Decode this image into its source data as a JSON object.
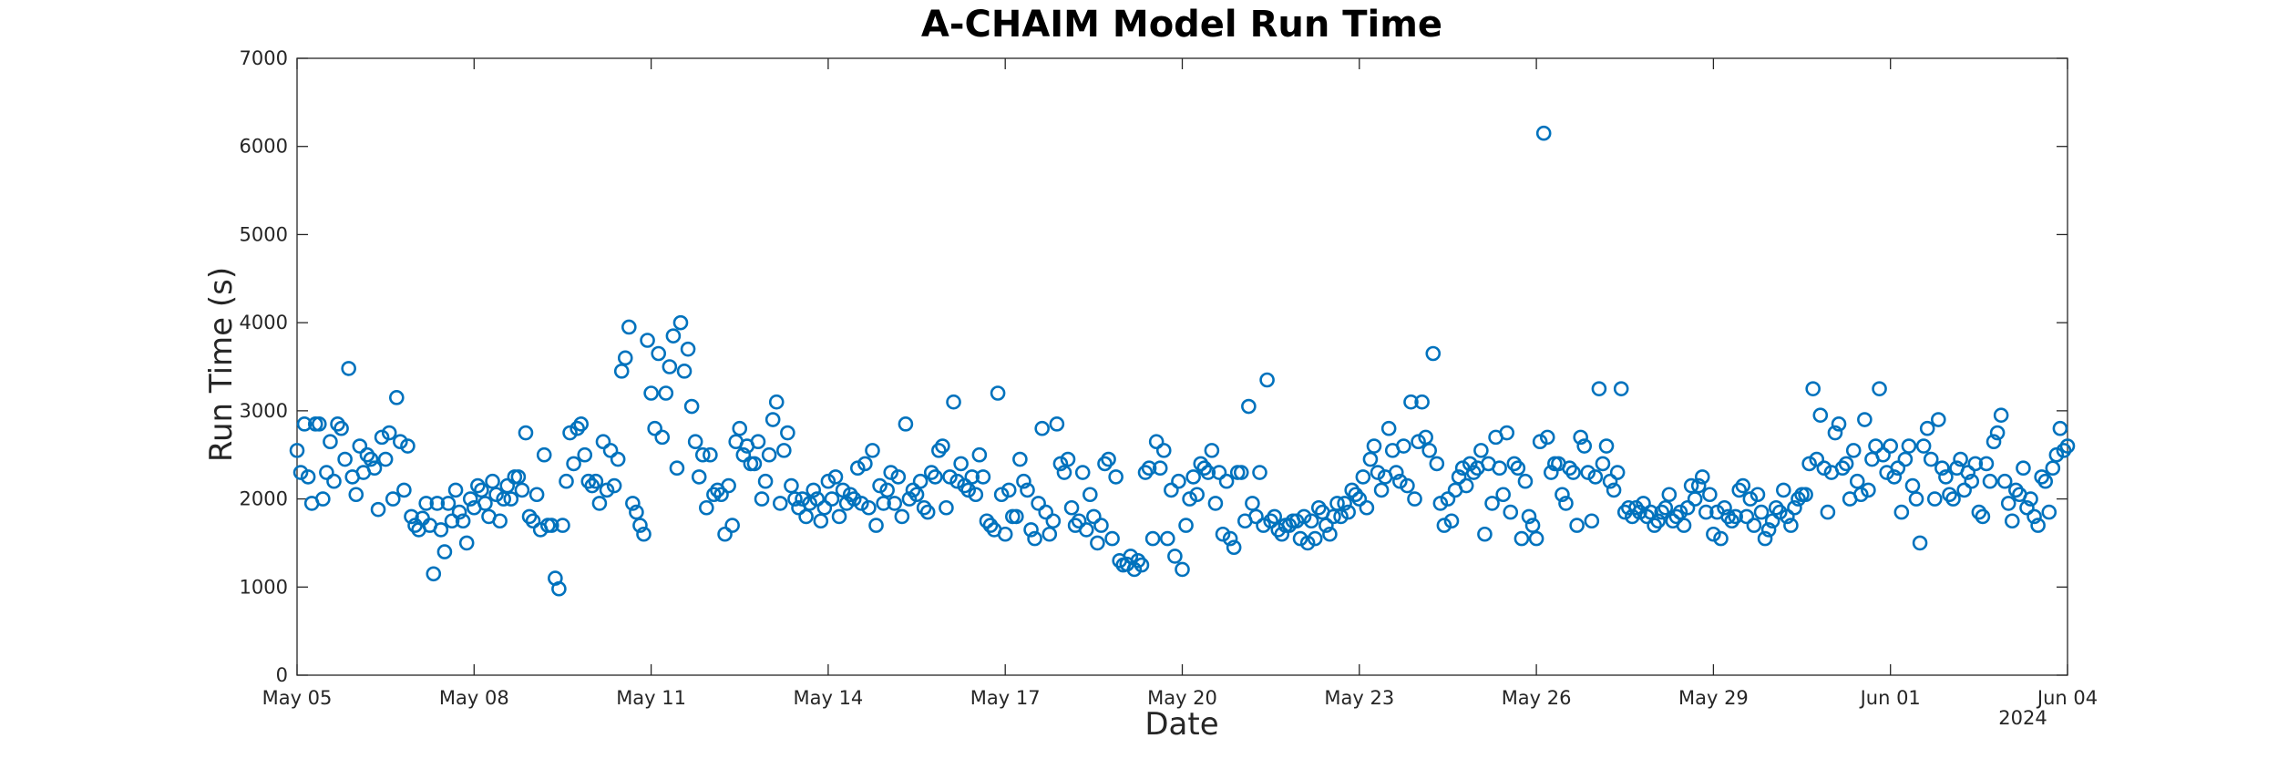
{
  "chart_data": {
    "type": "scatter",
    "title": "A-CHAIM Model Run Time",
    "xlabel": "Date",
    "ylabel": "Run Time (s)",
    "x_axis_type": "date",
    "xlim": [
      "2024-05-05",
      "2024-06-04"
    ],
    "ylim": [
      0,
      7000
    ],
    "x_tick_labels": [
      "May 05",
      "May 08",
      "May 11",
      "May 14",
      "May 17",
      "May 20",
      "May 23",
      "May 26",
      "May 29",
      "Jun 01",
      "Jun 04"
    ],
    "x_tick_dates": [
      "2024-05-05",
      "2024-05-08",
      "2024-05-11",
      "2024-05-14",
      "2024-05-17",
      "2024-05-20",
      "2024-05-23",
      "2024-05-26",
      "2024-05-29",
      "2024-06-01",
      "2024-06-04"
    ],
    "x_year_label": "2024",
    "y_ticks": [
      0,
      1000,
      2000,
      3000,
      4000,
      5000,
      6000,
      7000
    ],
    "grid": false,
    "marker": "open circle",
    "series_color": "#0072bd",
    "x": [
      "2024-05-05 00:00",
      "2024-05-05 01:30",
      "2024-05-05 03:00",
      "2024-05-05 04:30",
      "2024-05-05 06:00",
      "2024-05-05 07:30",
      "2024-05-05 09:00",
      "2024-05-05 10:30",
      "2024-05-05 12:00",
      "2024-05-05 13:30",
      "2024-05-05 15:00",
      "2024-05-05 16:30",
      "2024-05-05 18:00",
      "2024-05-05 19:30",
      "2024-05-05 21:00",
      "2024-05-05 22:30",
      "2024-05-06 00:00",
      "2024-05-06 01:30",
      "2024-05-06 03:00",
      "2024-05-06 04:30",
      "2024-05-06 06:00",
      "2024-05-06 07:30",
      "2024-05-06 09:00",
      "2024-05-06 10:30",
      "2024-05-06 12:00",
      "2024-05-06 13:30",
      "2024-05-06 15:00",
      "2024-05-06 16:30",
      "2024-05-06 18:00",
      "2024-05-06 19:30",
      "2024-05-06 21:00",
      "2024-05-06 22:30",
      "2024-05-07 00:00",
      "2024-05-07 01:30",
      "2024-05-07 03:00",
      "2024-05-07 04:30",
      "2024-05-07 06:00",
      "2024-05-07 07:30",
      "2024-05-07 09:00",
      "2024-05-07 10:30",
      "2024-05-07 12:00",
      "2024-05-07 13:30",
      "2024-05-07 15:00",
      "2024-05-07 16:30",
      "2024-05-07 18:00",
      "2024-05-07 19:30",
      "2024-05-07 21:00",
      "2024-05-07 22:30",
      "2024-05-08 00:00",
      "2024-05-08 01:30",
      "2024-05-08 03:00",
      "2024-05-08 04:30",
      "2024-05-08 06:00",
      "2024-05-08 07:30",
      "2024-05-08 09:00",
      "2024-05-08 10:30",
      "2024-05-08 12:00",
      "2024-05-08 13:30",
      "2024-05-08 15:00",
      "2024-05-08 16:30",
      "2024-05-08 18:00",
      "2024-05-08 19:30",
      "2024-05-08 21:00",
      "2024-05-08 22:30",
      "2024-05-09 00:00",
      "2024-05-09 01:30",
      "2024-05-09 03:00",
      "2024-05-09 04:30",
      "2024-05-09 06:00",
      "2024-05-09 07:30",
      "2024-05-09 09:00",
      "2024-05-09 10:30",
      "2024-05-09 12:00",
      "2024-05-09 13:30",
      "2024-05-09 15:00",
      "2024-05-09 16:30",
      "2024-05-09 18:00",
      "2024-05-09 19:30",
      "2024-05-09 21:00",
      "2024-05-09 22:30",
      "2024-05-10 00:00",
      "2024-05-10 01:30",
      "2024-05-10 03:00",
      "2024-05-10 04:30",
      "2024-05-10 06:00",
      "2024-05-10 07:30",
      "2024-05-10 09:00",
      "2024-05-10 10:30",
      "2024-05-10 12:00",
      "2024-05-10 13:30",
      "2024-05-10 15:00",
      "2024-05-10 16:30",
      "2024-05-10 18:00",
      "2024-05-10 19:30",
      "2024-05-10 21:00",
      "2024-05-10 22:30",
      "2024-05-11 00:00",
      "2024-05-11 01:30",
      "2024-05-11 03:00",
      "2024-05-11 04:30",
      "2024-05-11 06:00",
      "2024-05-11 07:30",
      "2024-05-11 09:00",
      "2024-05-11 10:30",
      "2024-05-11 12:00",
      "2024-05-11 13:30",
      "2024-05-11 15:00",
      "2024-05-11 16:30",
      "2024-05-11 18:00",
      "2024-05-11 19:30",
      "2024-05-11 21:00",
      "2024-05-11 22:30",
      "2024-05-12 00:00",
      "2024-05-12 01:30",
      "2024-05-12 03:00",
      "2024-05-12 04:30",
      "2024-05-12 06:00",
      "2024-05-12 07:30",
      "2024-05-12 09:00",
      "2024-05-12 10:30",
      "2024-05-12 12:00",
      "2024-05-12 13:30",
      "2024-05-12 15:00",
      "2024-05-12 16:30",
      "2024-05-12 18:00",
      "2024-05-12 19:30",
      "2024-05-12 21:00",
      "2024-05-12 22:30",
      "2024-05-13 00:00",
      "2024-05-13 01:30",
      "2024-05-13 03:00",
      "2024-05-13 04:30",
      "2024-05-13 06:00",
      "2024-05-13 07:30",
      "2024-05-13 09:00",
      "2024-05-13 10:30",
      "2024-05-13 12:00",
      "2024-05-13 13:30",
      "2024-05-13 15:00",
      "2024-05-13 16:30",
      "2024-05-13 18:00",
      "2024-05-13 19:30",
      "2024-05-13 21:00",
      "2024-05-13 22:30",
      "2024-05-14 00:00",
      "2024-05-14 01:30",
      "2024-05-14 03:00",
      "2024-05-14 04:30",
      "2024-05-14 06:00",
      "2024-05-14 07:30",
      "2024-05-14 09:00",
      "2024-05-14 10:30",
      "2024-05-14 12:00",
      "2024-05-14 13:30",
      "2024-05-14 15:00",
      "2024-05-14 16:30",
      "2024-05-14 18:00",
      "2024-05-14 19:30",
      "2024-05-14 21:00",
      "2024-05-14 22:30",
      "2024-05-15 00:00",
      "2024-05-15 01:30",
      "2024-05-15 03:00",
      "2024-05-15 04:30",
      "2024-05-15 06:00",
      "2024-05-15 07:30",
      "2024-05-15 09:00",
      "2024-05-15 10:30",
      "2024-05-15 12:00",
      "2024-05-15 13:30",
      "2024-05-15 15:00",
      "2024-05-15 16:30",
      "2024-05-15 18:00",
      "2024-05-15 19:30",
      "2024-05-15 21:00",
      "2024-05-15 22:30",
      "2024-05-16 00:00",
      "2024-05-16 01:30",
      "2024-05-16 03:00",
      "2024-05-16 04:30",
      "2024-05-16 06:00",
      "2024-05-16 07:30",
      "2024-05-16 09:00",
      "2024-05-16 10:30",
      "2024-05-16 12:00",
      "2024-05-16 13:30",
      "2024-05-16 15:00",
      "2024-05-16 16:30",
      "2024-05-16 18:00",
      "2024-05-16 19:30",
      "2024-05-16 21:00",
      "2024-05-16 22:30",
      "2024-05-17 00:00",
      "2024-05-17 01:30",
      "2024-05-17 03:00",
      "2024-05-17 04:30",
      "2024-05-17 06:00",
      "2024-05-17 07:30",
      "2024-05-17 09:00",
      "2024-05-17 10:30",
      "2024-05-17 12:00",
      "2024-05-17 13:30",
      "2024-05-17 15:00",
      "2024-05-17 16:30",
      "2024-05-17 18:00",
      "2024-05-17 19:30",
      "2024-05-17 21:00",
      "2024-05-17 22:30",
      "2024-05-18 00:00",
      "2024-05-18 01:30",
      "2024-05-18 03:00",
      "2024-05-18 04:30",
      "2024-05-18 06:00",
      "2024-05-18 07:30",
      "2024-05-18 09:00",
      "2024-05-18 10:30",
      "2024-05-18 12:00",
      "2024-05-18 13:30",
      "2024-05-18 15:00",
      "2024-05-18 16:30",
      "2024-05-18 18:00",
      "2024-05-18 19:30",
      "2024-05-18 21:00",
      "2024-05-18 22:30",
      "2024-05-19 00:00",
      "2024-05-19 01:30",
      "2024-05-19 03:00",
      "2024-05-19 04:30",
      "2024-05-19 06:00",
      "2024-05-19 07:30",
      "2024-05-19 09:00",
      "2024-05-19 10:30",
      "2024-05-19 12:00",
      "2024-05-19 13:30",
      "2024-05-19 15:00",
      "2024-05-19 16:30",
      "2024-05-19 18:00",
      "2024-05-19 19:30",
      "2024-05-19 21:00",
      "2024-05-19 22:30",
      "2024-05-20 00:00",
      "2024-05-20 01:30",
      "2024-05-20 03:00",
      "2024-05-20 04:30",
      "2024-05-20 06:00",
      "2024-05-20 07:30",
      "2024-05-20 09:00",
      "2024-05-20 10:30",
      "2024-05-20 12:00",
      "2024-05-20 13:30",
      "2024-05-20 15:00",
      "2024-05-20 16:30",
      "2024-05-20 18:00",
      "2024-05-20 19:30",
      "2024-05-20 21:00",
      "2024-05-20 22:30",
      "2024-05-21 00:00",
      "2024-05-21 01:30",
      "2024-05-21 03:00",
      "2024-05-21 04:30",
      "2024-05-21 06:00",
      "2024-05-21 07:30",
      "2024-05-21 09:00",
      "2024-05-21 10:30",
      "2024-05-21 12:00",
      "2024-05-21 13:30",
      "2024-05-21 15:00",
      "2024-05-21 16:30",
      "2024-05-21 18:00",
      "2024-05-21 19:30",
      "2024-05-21 21:00",
      "2024-05-21 22:30",
      "2024-05-22 00:00",
      "2024-05-22 01:30",
      "2024-05-22 03:00",
      "2024-05-22 04:30",
      "2024-05-22 06:00",
      "2024-05-22 07:30",
      "2024-05-22 09:00",
      "2024-05-22 10:30",
      "2024-05-22 12:00",
      "2024-05-22 13:30",
      "2024-05-22 15:00",
      "2024-05-22 16:30",
      "2024-05-22 18:00",
      "2024-05-22 19:30",
      "2024-05-22 21:00",
      "2024-05-22 22:30",
      "2024-05-23 00:00",
      "2024-05-23 01:30",
      "2024-05-23 03:00",
      "2024-05-23 04:30",
      "2024-05-23 06:00",
      "2024-05-23 07:30",
      "2024-05-23 09:00",
      "2024-05-23 10:30",
      "2024-05-23 12:00",
      "2024-05-23 13:30",
      "2024-05-23 15:00",
      "2024-05-23 16:30",
      "2024-05-23 18:00",
      "2024-05-23 19:30",
      "2024-05-23 21:00",
      "2024-05-23 22:30",
      "2024-05-24 00:00",
      "2024-05-24 01:30",
      "2024-05-24 03:00",
      "2024-05-24 04:30",
      "2024-05-24 06:00",
      "2024-05-24 07:30",
      "2024-05-24 09:00",
      "2024-05-24 10:30",
      "2024-05-24 12:00",
      "2024-05-24 13:30",
      "2024-05-24 15:00",
      "2024-05-24 16:30",
      "2024-05-24 18:00",
      "2024-05-24 19:30",
      "2024-05-24 21:00",
      "2024-05-24 22:30",
      "2024-05-25 00:00",
      "2024-05-25 01:30",
      "2024-05-25 03:00",
      "2024-05-25 04:30",
      "2024-05-25 06:00",
      "2024-05-25 07:30",
      "2024-05-25 09:00",
      "2024-05-25 10:30",
      "2024-05-25 12:00",
      "2024-05-25 13:30",
      "2024-05-25 15:00",
      "2024-05-25 16:30",
      "2024-05-25 18:00",
      "2024-05-25 19:30",
      "2024-05-25 21:00",
      "2024-05-25 22:30",
      "2024-05-26 00:00",
      "2024-05-26 01:30",
      "2024-05-26 03:00",
      "2024-05-26 04:30",
      "2024-05-26 06:00",
      "2024-05-26 07:30",
      "2024-05-26 09:00",
      "2024-05-26 10:30",
      "2024-05-26 12:00",
      "2024-05-26 13:30",
      "2024-05-26 15:00",
      "2024-05-26 16:30",
      "2024-05-26 18:00",
      "2024-05-26 19:30",
      "2024-05-26 21:00",
      "2024-05-26 22:30",
      "2024-05-27 00:00",
      "2024-05-27 01:30",
      "2024-05-27 03:00",
      "2024-05-27 04:30",
      "2024-05-27 06:00",
      "2024-05-27 07:30",
      "2024-05-27 09:00",
      "2024-05-27 10:30",
      "2024-05-27 12:00",
      "2024-05-27 13:30",
      "2024-05-27 15:00",
      "2024-05-27 16:30",
      "2024-05-27 18:00",
      "2024-05-27 19:30",
      "2024-05-27 21:00",
      "2024-05-27 22:30",
      "2024-05-28 00:00",
      "2024-05-28 01:30",
      "2024-05-28 03:00",
      "2024-05-28 04:30",
      "2024-05-28 06:00",
      "2024-05-28 07:30",
      "2024-05-28 09:00",
      "2024-05-28 10:30",
      "2024-05-28 12:00",
      "2024-05-28 13:30",
      "2024-05-28 15:00",
      "2024-05-28 16:30",
      "2024-05-28 18:00",
      "2024-05-28 19:30",
      "2024-05-28 21:00",
      "2024-05-28 22:30",
      "2024-05-29 00:00",
      "2024-05-29 01:30",
      "2024-05-29 03:00",
      "2024-05-29 04:30",
      "2024-05-29 06:00",
      "2024-05-29 07:30",
      "2024-05-29 09:00",
      "2024-05-29 10:30",
      "2024-05-29 12:00",
      "2024-05-29 13:30",
      "2024-05-29 15:00",
      "2024-05-29 16:30",
      "2024-05-29 18:00",
      "2024-05-29 19:30",
      "2024-05-29 21:00",
      "2024-05-29 22:30",
      "2024-05-30 00:00",
      "2024-05-30 01:30",
      "2024-05-30 03:00",
      "2024-05-30 04:30",
      "2024-05-30 06:00",
      "2024-05-30 07:30",
      "2024-05-30 09:00",
      "2024-05-30 10:30",
      "2024-05-30 12:00",
      "2024-05-30 13:30",
      "2024-05-30 15:00",
      "2024-05-30 16:30",
      "2024-05-30 18:00",
      "2024-05-30 19:30",
      "2024-05-30 21:00",
      "2024-05-30 22:30",
      "2024-05-31 00:00",
      "2024-05-31 01:30",
      "2024-05-31 03:00",
      "2024-05-31 04:30",
      "2024-05-31 06:00",
      "2024-05-31 07:30",
      "2024-05-31 09:00",
      "2024-05-31 10:30",
      "2024-05-31 12:00",
      "2024-05-31 13:30",
      "2024-05-31 15:00",
      "2024-05-31 16:30",
      "2024-05-31 18:00",
      "2024-05-31 19:30",
      "2024-05-31 21:00",
      "2024-05-31 22:30",
      "2024-06-01 00:00",
      "2024-06-01 01:30",
      "2024-06-01 03:00",
      "2024-06-01 04:30",
      "2024-06-01 06:00",
      "2024-06-01 07:30",
      "2024-06-01 09:00",
      "2024-06-01 10:30",
      "2024-06-01 12:00",
      "2024-06-01 13:30",
      "2024-06-01 15:00",
      "2024-06-01 16:30",
      "2024-06-01 18:00",
      "2024-06-01 19:30",
      "2024-06-01 21:00",
      "2024-06-01 22:30",
      "2024-06-02 00:00",
      "2024-06-02 01:30",
      "2024-06-02 03:00",
      "2024-06-02 04:30",
      "2024-06-02 06:00",
      "2024-06-02 07:30",
      "2024-06-02 09:00",
      "2024-06-02 10:30",
      "2024-06-02 12:00",
      "2024-06-02 13:30",
      "2024-06-02 15:00",
      "2024-06-02 16:30",
      "2024-06-02 18:00",
      "2024-06-02 19:30",
      "2024-06-02 21:00",
      "2024-06-02 22:30",
      "2024-06-03 00:00",
      "2024-06-03 01:30",
      "2024-06-03 03:00",
      "2024-06-03 04:30",
      "2024-06-03 06:00",
      "2024-06-03 07:30",
      "2024-06-03 09:00",
      "2024-06-03 10:30",
      "2024-06-03 12:00",
      "2024-06-03 13:30",
      "2024-06-03 15:00",
      "2024-06-03 16:30",
      "2024-06-03 18:00",
      "2024-06-03 19:30",
      "2024-06-03 21:00",
      "2024-06-03 22:30",
      "2024-06-04 00:00"
    ],
    "y": [
      2550,
      2300,
      2850,
      2250,
      1950,
      2850,
      2850,
      2000,
      2300,
      2650,
      2200,
      2850,
      2800,
      2450,
      3480,
      2250,
      2050,
      2600,
      2300,
      2500,
      2450,
      2350,
      1880,
      2700,
      2450,
      2750,
      2000,
      3150,
      2650,
      2100,
      2600,
      1800,
      1700,
      1650,
      1780,
      1950,
      1700,
      1150,
      1950,
      1650,
      1400,
      1950,
      1750,
      2100,
      1850,
      1750,
      1500,
      2000,
      1900,
      2150,
      2100,
      1950,
      1800,
      2200,
      2050,
      1750,
      2000,
      2150,
      2000,
      2250,
      2250,
      2100,
      2750,
      1800,
      1750,
      2050,
      1650,
      2500,
      1700,
      1700,
      1100,
      980,
      1700,
      2200,
      2750,
      2400,
      2800,
      2850,
      2500,
      2200,
      2150,
      2200,
      1950,
      2650,
      2100,
      2550,
      2150,
      2450,
      3450,
      3600,
      3950,
      1950,
      1850,
      1700,
      1600,
      3800,
      3200,
      2800,
      3650,
      2700,
      3200,
      3500,
      3850,
      2350,
      4000,
      3450,
      3700,
      3050,
      2650,
      2250,
      2500,
      1900,
      2500,
      2050,
      2100,
      2050,
      1600,
      2150,
      1700,
      2650,
      2800,
      2500,
      2600,
      2400,
      2400,
      2650,
      2000,
      2200,
      2500,
      2900,
      3100,
      1950,
      2550,
      2750,
      2150,
      2000,
      1900,
      2000,
      1800,
      1950,
      2100,
      2000,
      1750,
      1900,
      2200,
      2000,
      2250,
      1800,
      2100,
      1950,
      2050,
      2000,
      2350,
      1950,
      2400,
      1900,
      2550,
      1700,
      2150,
      1950,
      2100,
      2300,
      1950,
      2250,
      1800,
      2850,
      2000,
      2100,
      2050,
      2200,
      1900,
      1850,
      2300,
      2250,
      2550,
      2600,
      1900,
      2250,
      3100,
      2200,
      2400,
      2150,
      2100,
      2250,
      2050,
      2500,
      2250,
      1750,
      1700,
      1650,
      3200,
      2050,
      1600,
      2100,
      1800,
      1800,
      2450,
      2200,
      2100,
      1650,
      1550,
      1950,
      2800,
      1850,
      1600,
      1750,
      2850,
      2400,
      2300,
      2450,
      1900,
      1700,
      1750,
      2300,
      1650,
      2050,
      1800,
      1500,
      1700,
      2400,
      2450,
      1550,
      2250,
      1300,
      1250,
      1260,
      1350,
      1200,
      1300,
      1250,
      2300,
      2350,
      1550,
      2650,
      2350,
      2550,
      1550,
      2100,
      1350,
      2200,
      1200,
      1700,
      2000,
      2250,
      2050,
      2400,
      2350,
      2300,
      2550,
      1950,
      2300,
      1600,
      2200,
      1550,
      1450,
      2300,
      2300,
      1750,
      3050,
      1950,
      1800,
      2300,
      1700,
      3350,
      1750,
      1800,
      1650,
      1600,
      1700,
      1700,
      1750,
      1750,
      1550,
      1800,
      1500,
      1750,
      1550,
      1900,
      1850,
      1700,
      1600,
      1800,
      1950,
      1800,
      1950,
      1850,
      2100,
      2050,
      2000,
      2250,
      1900,
      2450,
      2600,
      2300,
      2100,
      2250,
      2800,
      2550,
      2300,
      2200,
      2600,
      2150,
      3100,
      2000,
      2650,
      3100,
      2700,
      2550,
      3650,
      2400,
      1950,
      1700,
      2000,
      1750,
      2100,
      2250,
      2350,
      2150,
      2400,
      2300,
      2350,
      2550,
      1600,
      2400,
      1950,
      2700,
      2350,
      2050,
      2750,
      1850,
      2400,
      2350,
      1550,
      2200,
      1800,
      1700,
      1550,
      2650,
      6150,
      2700,
      2300,
      2400,
      2400,
      2050,
      1950,
      2350,
      2300,
      1700,
      2700,
      2600,
      2300,
      1750,
      2250,
      3250,
      2400,
      2600,
      2200,
      2100,
      2300,
      3250,
      1850,
      1900,
      1800,
      1900,
      1850,
      1950,
      1800,
      1850,
      1700,
      1750,
      1850,
      1900,
      2050,
      1750,
      1800,
      1850,
      1700,
      1900,
      2150,
      2000,
      2150,
      2250,
      1850,
      2050,
      1600,
      1850,
      1550,
      1900,
      1800,
      1750,
      1800,
      2100,
      2150,
      1800,
      2000,
      1700,
      2050,
      1850,
      1550,
      1650,
      1750,
      1900,
      1850,
      2100,
      1800,
      1700,
      1900,
      2000,
      2050,
      2050,
      2400,
      3250,
      2450,
      2950,
      2350,
      1850,
      2300,
      2750,
      2850,
      2350,
      2400,
      2000,
      2550,
      2200,
      2050,
      2900,
      2100,
      2450,
      2600,
      3250,
      2500,
      2300,
      2600,
      2250,
      2350,
      1850,
      2450,
      2600,
      2150,
      2000,
      1500,
      2600,
      2800,
      2450,
      2000,
      2900,
      2350,
      2250,
      2050,
      2000,
      2350,
      2450,
      2100,
      2300,
      2200,
      2400,
      1850,
      1800,
      2400,
      2200,
      2650,
      2750,
      2950,
      2200,
      1950,
      1750,
      2100,
      2050,
      2350,
      1900,
      2000,
      1800,
      1700,
      2250,
      2200,
      1850,
      2350,
      2500,
      2800,
      2550,
      2600
    ]
  }
}
